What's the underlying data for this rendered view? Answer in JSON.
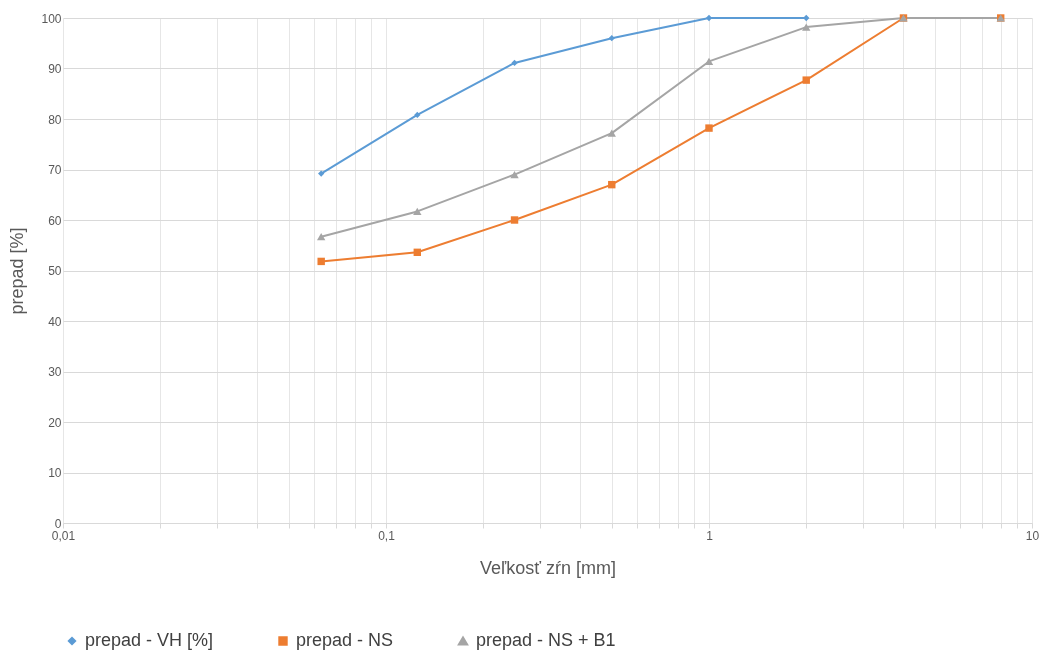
{
  "chart_data": {
    "type": "line",
    "xlabel": "Veľkosť zŕn [mm]",
    "ylabel": "prepad [%]",
    "log": "x",
    "grid": true,
    "legend": "bottom",
    "line_style": "solid",
    "xlim": [
      0.01,
      10
    ],
    "ylim": [
      0,
      100
    ],
    "xticks": [
      {
        "value": 0.01,
        "label": "0,01"
      },
      {
        "value": 0.02,
        "label": null
      },
      {
        "value": 0.03,
        "label": null
      },
      {
        "value": 0.04,
        "label": null
      },
      {
        "value": 0.05,
        "label": null
      },
      {
        "value": 0.06,
        "label": null
      },
      {
        "value": 0.07,
        "label": null
      },
      {
        "value": 0.08,
        "label": null
      },
      {
        "value": 0.09,
        "label": null
      },
      {
        "value": 0.1,
        "label": "0,1"
      },
      {
        "value": 0.2,
        "label": null
      },
      {
        "value": 0.3,
        "label": null
      },
      {
        "value": 0.4,
        "label": null
      },
      {
        "value": 0.5,
        "label": null
      },
      {
        "value": 0.6,
        "label": null
      },
      {
        "value": 0.7,
        "label": null
      },
      {
        "value": 0.8,
        "label": null
      },
      {
        "value": 0.9,
        "label": null
      },
      1,
      {
        "value": 2,
        "label": null
      },
      {
        "value": 3,
        "label": null
      },
      {
        "value": 4,
        "label": null
      },
      {
        "value": 5,
        "label": null
      },
      {
        "value": 6,
        "label": null
      },
      {
        "value": 7,
        "label": null
      },
      {
        "value": 8,
        "label": null
      },
      {
        "value": 9,
        "label": null
      },
      10
    ],
    "yticks": [
      0,
      10,
      20,
      30,
      40,
      50,
      60,
      70,
      80,
      90,
      100
    ],
    "series": [
      {
        "name": "prepad - VH [%]",
        "color": "#5b9bd5",
        "marker": "diamond",
        "x": [
          0.063,
          0.125,
          0.25,
          0.5,
          1,
          2
        ],
        "values": [
          69.2,
          80.8,
          91.1,
          96,
          100,
          100
        ]
      },
      {
        "name": "prepad - NS",
        "color": "#ed7d31",
        "marker": "square",
        "x": [
          0.063,
          0.125,
          0.25,
          0.5,
          1,
          2,
          4,
          8
        ],
        "values": [
          51.8,
          53.6,
          60,
          67,
          78.2,
          87.7,
          100,
          100
        ]
      },
      {
        "name": "prepad - NS + B1",
        "color": "#a5a5a5",
        "marker": "triangle",
        "x": [
          0.063,
          0.125,
          0.25,
          0.5,
          1,
          2,
          4,
          8
        ],
        "values": [
          56.7,
          61.7,
          69,
          77.2,
          91.4,
          98.2,
          100,
          100
        ]
      }
    ]
  }
}
